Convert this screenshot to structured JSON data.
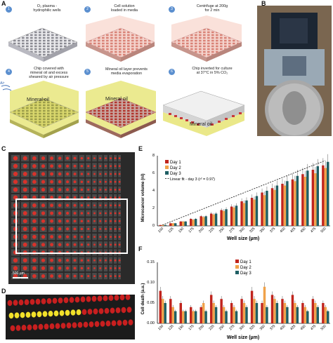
{
  "panel_labels": {
    "a": "A",
    "b": "B",
    "c": "C",
    "d": "D",
    "e": "E",
    "f": "F"
  },
  "steps": [
    {
      "num": "1",
      "caption": "O₂ plasma -\nhydrophilic wells"
    },
    {
      "num": "2",
      "caption": "Cell solution\nloaded in media"
    },
    {
      "num": "3",
      "caption": "Centrifuge at 200g\nfor 2 min"
    },
    {
      "num": "4",
      "caption": "Chip covered with\nmineral oil and excess\nsheared by air pressure"
    },
    {
      "num": "5",
      "caption": "Mineral oil layer prevents\nmedia evaporation"
    },
    {
      "num": "6",
      "caption": "Chip inverted for culture\nat 37°C in 5% CO₂"
    }
  ],
  "air_label": "Air",
  "oil_labels": [
    "Mineral oil",
    "Mineral oil",
    "Mineral oil"
  ],
  "scalebar_label": "500 µm",
  "colors": {
    "day1": "#c0241d",
    "day2": "#f0a24a",
    "day3": "#1f5f64",
    "stepcircle": "#5b8fcf",
    "oil": "#e6e47a"
  },
  "chart_data": [
    {
      "type": "bar",
      "panel": "E",
      "categories": [
        "100",
        "125",
        "150",
        "175",
        "200",
        "225",
        "250",
        "275",
        "300",
        "325",
        "350",
        "375",
        "400",
        "425",
        "450",
        "475",
        "500"
      ],
      "series": [
        {
          "name": "Day 1",
          "values": [
            0.1,
            0.3,
            0.5,
            0.8,
            1.1,
            1.4,
            1.8,
            2.2,
            2.8,
            3.2,
            3.8,
            4.3,
            4.8,
            5.3,
            5.9,
            6.4,
            6.9
          ]
        },
        {
          "name": "Day 2",
          "values": [
            0.1,
            0.3,
            0.5,
            0.7,
            1.0,
            1.3,
            1.7,
            2.1,
            2.6,
            3.0,
            3.5,
            4.1,
            4.6,
            5.1,
            5.6,
            6.0,
            6.6
          ]
        },
        {
          "name": "Day 3",
          "values": [
            0.1,
            0.3,
            0.5,
            0.8,
            1.1,
            1.4,
            1.9,
            2.3,
            2.9,
            3.4,
            4.0,
            4.6,
            5.1,
            5.7,
            6.3,
            6.8,
            7.3
          ]
        }
      ],
      "fit_label": "Linear fit - day 3 (r² = 0.97)",
      "xlabel": "Well size (µm)",
      "ylabel": "Microcancer volume (nl)",
      "ylim": [
        0,
        8
      ],
      "yticks": [
        "0",
        "2",
        "4",
        "6",
        "8"
      ],
      "legend": "top-left"
    },
    {
      "type": "bar",
      "panel": "F",
      "categories": [
        "100",
        "125",
        "150",
        "175",
        "200",
        "225",
        "250",
        "275",
        "300",
        "325",
        "350",
        "375",
        "400",
        "425",
        "450",
        "475",
        "500"
      ],
      "series": [
        {
          "name": "Day 1",
          "values": [
            0.08,
            0.06,
            0.05,
            0.04,
            0.04,
            0.07,
            0.06,
            0.05,
            0.06,
            0.08,
            0.05,
            0.07,
            0.06,
            0.07,
            0.05,
            0.06,
            0.05
          ]
        },
        {
          "name": "Day 2",
          "values": [
            0.06,
            0.04,
            0.03,
            0.03,
            0.05,
            0.05,
            0.04,
            0.04,
            0.05,
            0.06,
            0.09,
            0.06,
            0.05,
            0.05,
            0.04,
            0.05,
            0.04
          ]
        },
        {
          "name": "Day 3",
          "values": [
            0.05,
            0.03,
            0.03,
            0.03,
            0.03,
            0.04,
            0.03,
            0.03,
            0.04,
            0.05,
            0.04,
            0.05,
            0.04,
            0.04,
            0.03,
            0.04,
            0.03
          ]
        }
      ],
      "xlabel": "Well size (µm)",
      "ylabel": "Cell death (a.u.)",
      "ylim": [
        0,
        0.15
      ],
      "yticks": [
        "0.00",
        "0.05",
        "0.10",
        "0.15"
      ],
      "legend": "top-center"
    }
  ]
}
